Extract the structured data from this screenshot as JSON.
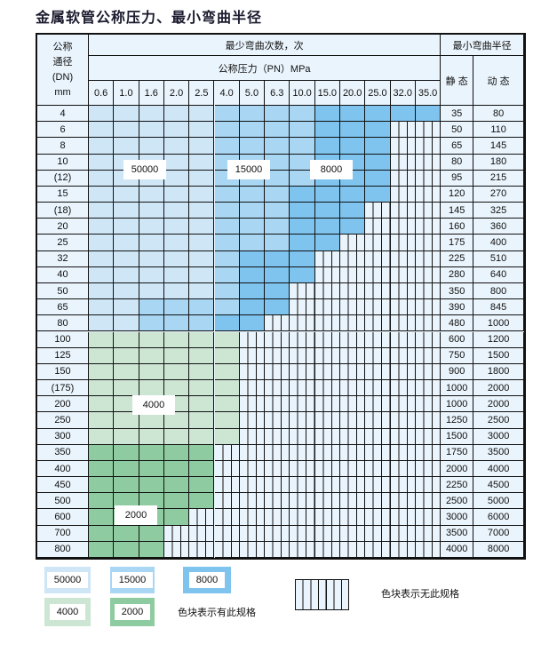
{
  "title": "金属软管公称压力、最小弯曲半径",
  "header": {
    "dn_label": "公称\n通径\n(DN)\nmm",
    "cycles_label": "最少弯曲次数，次",
    "pressure_label": "公称压力（PN）MPa",
    "radius_label": "最小弯曲半径",
    "static_label": "静 态",
    "dynamic_label": "动 态"
  },
  "pressures": [
    "0.6",
    "1.0",
    "1.6",
    "2.0",
    "2.5",
    "4.0",
    "5.0",
    "6.3",
    "10.0",
    "15.0",
    "20.0",
    "25.0",
    "32.0",
    "35.0"
  ],
  "colors": {
    "a": "#cfe6f7",
    "b": "#a9d6f3",
    "c": "#7ec4ee",
    "d": "#cde6d3",
    "e": "#8fcba0",
    "hatch": "#eaf4fc"
  },
  "rows": [
    {
      "dn": "4",
      "static": "35",
      "dynamic": "80",
      "cells": "aaaaabbbbccccc"
    },
    {
      "dn": "6",
      "static": "50",
      "dynamic": "110",
      "cells": "aaaaabbbbccc"
    },
    {
      "dn": "8",
      "static": "65",
      "dynamic": "145",
      "cells": "aaaaabbbbccc"
    },
    {
      "dn": "10",
      "static": "80",
      "dynamic": "180",
      "cells": "aaaaabbbbccc"
    },
    {
      "dn": "(12)",
      "static": "95",
      "dynamic": "215",
      "cells": "aaaaabbbbccc"
    },
    {
      "dn": "15",
      "static": "120",
      "dynamic": "270",
      "cells": "aaaaabbbcccc"
    },
    {
      "dn": "(18)",
      "static": "145",
      "dynamic": "325",
      "cells": "aaaaabbbccc"
    },
    {
      "dn": "20",
      "static": "160",
      "dynamic": "360",
      "cells": "aaaaabbbccc"
    },
    {
      "dn": "25",
      "static": "175",
      "dynamic": "400",
      "cells": "aaaaabbbcc"
    },
    {
      "dn": "32",
      "static": "225",
      "dynamic": "510",
      "cells": "aaaaabccc"
    },
    {
      "dn": "40",
      "static": "280",
      "dynamic": "640",
      "cells": "aaaaabccc"
    },
    {
      "dn": "50",
      "static": "350",
      "dynamic": "800",
      "cells": "aaaaabcc"
    },
    {
      "dn": "65",
      "static": "390",
      "dynamic": "845",
      "cells": "aabbbbcc"
    },
    {
      "dn": "80",
      "static": "480",
      "dynamic": "1000",
      "cells": "aabbbcc"
    },
    {
      "dn": "100",
      "static": "600",
      "dynamic": "1200",
      "cells": "dddddd"
    },
    {
      "dn": "125",
      "static": "750",
      "dynamic": "1500",
      "cells": "dddddd"
    },
    {
      "dn": "150",
      "static": "900",
      "dynamic": "1800",
      "cells": "dddddd"
    },
    {
      "dn": "(175)",
      "static": "1000",
      "dynamic": "2000",
      "cells": "dddddd"
    },
    {
      "dn": "200",
      "static": "1000",
      "dynamic": "2000",
      "cells": "dddddd"
    },
    {
      "dn": "250",
      "static": "1250",
      "dynamic": "2500",
      "cells": "dddddd"
    },
    {
      "dn": "300",
      "static": "1500",
      "dynamic": "3000",
      "cells": "dddddd"
    },
    {
      "dn": "350",
      "static": "1750",
      "dynamic": "3500",
      "cells": "eeeee"
    },
    {
      "dn": "400",
      "static": "2000",
      "dynamic": "4000",
      "cells": "eeeee"
    },
    {
      "dn": "450",
      "static": "2250",
      "dynamic": "4500",
      "cells": "eeeee"
    },
    {
      "dn": "500",
      "static": "2500",
      "dynamic": "5000",
      "cells": "eeeee"
    },
    {
      "dn": "600",
      "static": "3000",
      "dynamic": "6000",
      "cells": "eeee"
    },
    {
      "dn": "700",
      "static": "3500",
      "dynamic": "7000",
      "cells": "eee"
    },
    {
      "dn": "800",
      "static": "4000",
      "dynamic": "8000",
      "cells": "eee"
    }
  ],
  "region_labels": {
    "a": "50000",
    "b": "15000",
    "c": "8000",
    "d": "4000",
    "e": "2000"
  },
  "legend": {
    "items": [
      {
        "code": "a",
        "value": "50000"
      },
      {
        "code": "b",
        "value": "15000"
      },
      {
        "code": "c",
        "value": "8000"
      },
      {
        "code": "d",
        "value": "4000"
      },
      {
        "code": "e",
        "value": "2000"
      }
    ],
    "has_spec": "色块表示有此规格",
    "no_spec": "色块表示无此规格"
  }
}
